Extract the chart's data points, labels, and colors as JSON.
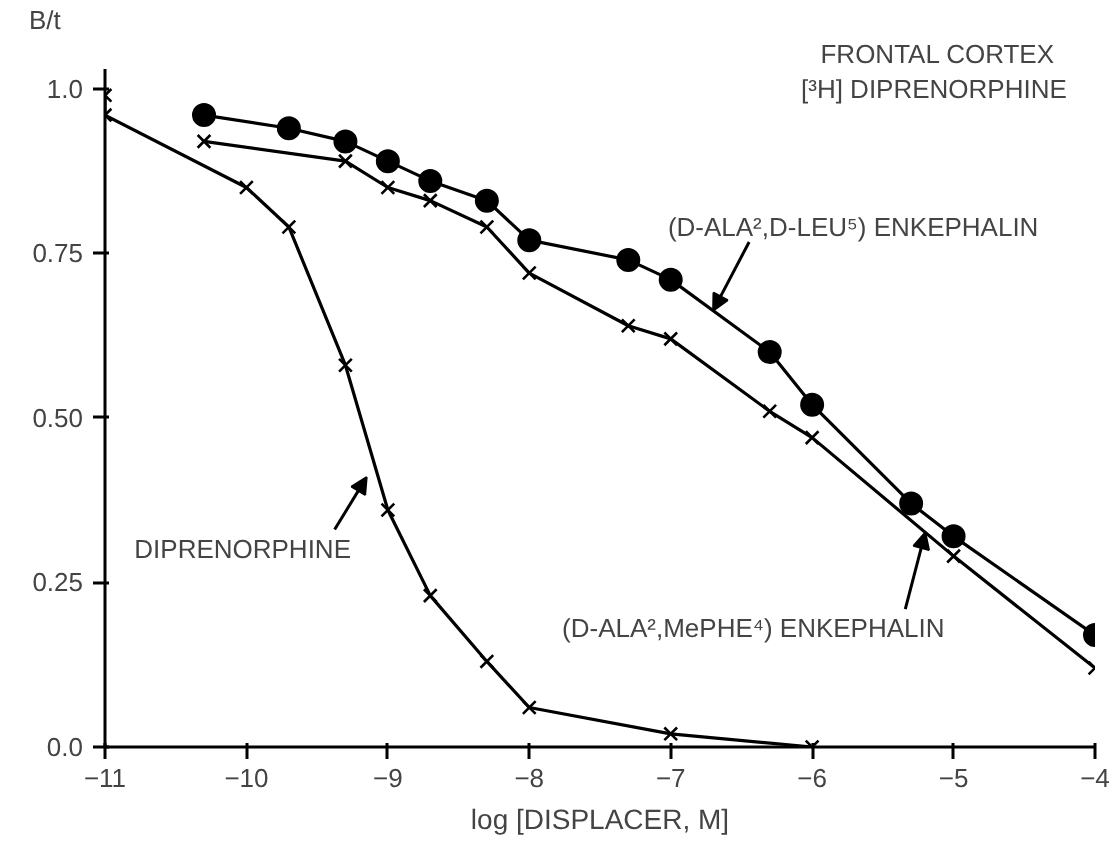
{
  "chart_data": {
    "type": "line",
    "title": "FRONTAL CORTEX",
    "subtitle": "[³H] DIPRENORPHINE",
    "xlabel": "log [DISPLACER, M]",
    "ylabel": "B/t",
    "xlim": [
      -11,
      -4
    ],
    "ylim": [
      0,
      1.03
    ],
    "xticks": [
      -11,
      -10,
      -9,
      -8,
      -7,
      -6,
      -5,
      -4
    ],
    "yticks": [
      {
        "value": 0,
        "label": "0.0"
      },
      0.25,
      {
        "value": 0.5,
        "label": "0.50"
      },
      0.75,
      {
        "value": 1,
        "label": "1.0"
      }
    ],
    "grid": false,
    "line_style": "solid",
    "series": [
      {
        "color": "#000000",
        "marker": "cross",
        "x": [
          -11,
          -11,
          -10.0,
          -9.7,
          -9.3,
          -9.0,
          -8.7,
          -8.3,
          -8.0,
          -7.0,
          -6.0
        ],
        "values": [
          0.99,
          0.96,
          0.85,
          0.79,
          0.58,
          0.36,
          0.23,
          0.13,
          0.06,
          0.02,
          0.0
        ]
      },
      {
        "color": "#000000",
        "marker": "circle",
        "x": [
          -10.3,
          -9.7,
          -9.3,
          -9.0,
          -8.7,
          -8.3,
          -8.0,
          -7.3,
          -7.0,
          -6.3,
          -6.0,
          -5.3,
          -5.0,
          -4.0
        ],
        "values": [
          0.96,
          0.94,
          0.92,
          0.89,
          0.86,
          0.83,
          0.77,
          0.74,
          0.71,
          0.6,
          0.52,
          0.37,
          0.32,
          0.17
        ]
      },
      {
        "color": "#000000",
        "marker": "cross",
        "x": [
          -10.3,
          -9.3,
          -9.0,
          -8.7,
          -8.3,
          -8.0,
          -7.3,
          -7.0,
          -6.3,
          -6.0,
          -5.0,
          -4.0
        ],
        "values": [
          0.92,
          0.89,
          0.85,
          0.83,
          0.79,
          0.72,
          0.64,
          0.62,
          0.51,
          0.47,
          0.29,
          0.12
        ]
      }
    ],
    "annotations": [
      {
        "text": "DIPRENORPHINE",
        "x": -9.15,
        "y": 0.41
      },
      {
        "text": "(D-ALA²,D-LEU⁵) ENKEPHALIN",
        "x": -6.7,
        "y": 0.663
      },
      {
        "text": "(D-ALA²,MePHE⁴) ENKEPHALIN",
        "x": -5.2,
        "y": 0.326
      }
    ]
  }
}
